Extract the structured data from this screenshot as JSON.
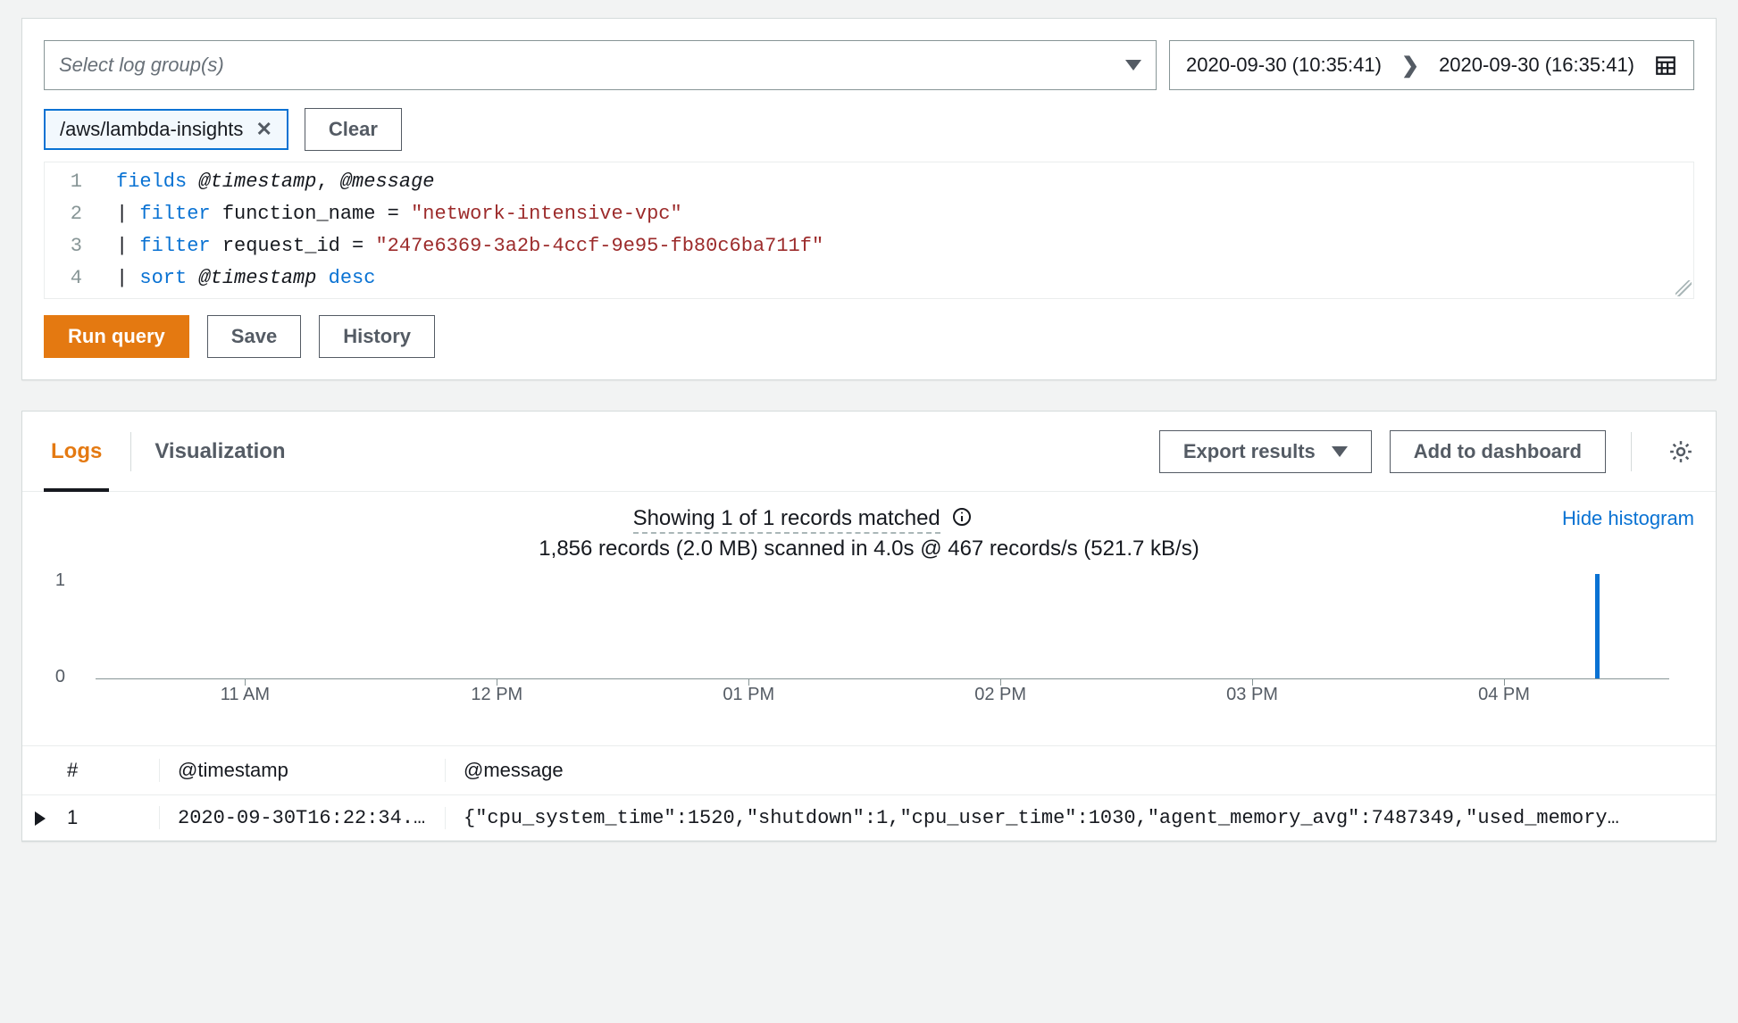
{
  "query_panel": {
    "log_group_placeholder": "Select log group(s)",
    "date_from": "2020-09-30 (10:35:41)",
    "date_to": "2020-09-30 (16:35:41)",
    "selected_group": "/aws/lambda-insights",
    "clear_label": "Clear",
    "editor": {
      "lines": [
        {
          "n": "1",
          "segments": [
            {
              "t": "fields",
              "c": "kw"
            },
            {
              "t": " ",
              "c": ""
            },
            {
              "t": "@timestamp",
              "c": "it"
            },
            {
              "t": ", ",
              "c": ""
            },
            {
              "t": "@message",
              "c": "it"
            }
          ]
        },
        {
          "n": "2",
          "segments": [
            {
              "t": "| ",
              "c": ""
            },
            {
              "t": "filter",
              "c": "kw"
            },
            {
              "t": " function_name = ",
              "c": ""
            },
            {
              "t": "\"network-intensive-vpc\"",
              "c": "str"
            }
          ]
        },
        {
          "n": "3",
          "segments": [
            {
              "t": "| ",
              "c": ""
            },
            {
              "t": "filter",
              "c": "kw"
            },
            {
              "t": " request_id = ",
              "c": ""
            },
            {
              "t": "\"247e6369-3a2b-4ccf-9e95-fb80c6ba711f\"",
              "c": "str"
            }
          ]
        },
        {
          "n": "4",
          "segments": [
            {
              "t": "| ",
              "c": ""
            },
            {
              "t": "sort",
              "c": "kw"
            },
            {
              "t": " ",
              "c": ""
            },
            {
              "t": "@timestamp",
              "c": "it"
            },
            {
              "t": " ",
              "c": ""
            },
            {
              "t": "desc",
              "c": "kw"
            }
          ]
        }
      ]
    },
    "run_label": "Run query",
    "save_label": "Save",
    "history_label": "History"
  },
  "results_panel": {
    "tabs": {
      "logs": "Logs",
      "visualization": "Visualization"
    },
    "export_label": "Export results",
    "add_dash_label": "Add to dashboard",
    "summary_line1": "Showing 1 of 1 records matched",
    "summary_line2": "1,856 records (2.0 MB) scanned in 4.0s @ 467 records/s (521.7 kB/s)",
    "hide_histogram": "Hide histogram",
    "histogram": {
      "ymax": 1,
      "ytick_labels": [
        "1",
        "0"
      ],
      "xlabels": [
        {
          "label": "11 AM",
          "pos_pct": 9.5
        },
        {
          "label": "12 PM",
          "pos_pct": 25.5
        },
        {
          "label": "01 PM",
          "pos_pct": 41.5
        },
        {
          "label": "02 PM",
          "pos_pct": 57.5
        },
        {
          "label": "03 PM",
          "pos_pct": 73.5
        },
        {
          "label": "04 PM",
          "pos_pct": 89.5
        }
      ],
      "bars": [
        {
          "pos_pct": 95.3,
          "value": 1
        }
      ],
      "bar_color": "#0972d3",
      "axis_color": "#879596"
    },
    "table": {
      "headers": {
        "num": "#",
        "ts": "@timestamp",
        "msg": "@message"
      },
      "rows": [
        {
          "num": "1",
          "ts": "2020-09-30T16:22:34.…",
          "msg": "{\"cpu_system_time\":1520,\"shutdown\":1,\"cpu_user_time\":1030,\"agent_memory_avg\":7487349,\"used_memory…"
        }
      ]
    }
  },
  "colors": {
    "primary_button": "#e47911",
    "link": "#0972d3"
  }
}
